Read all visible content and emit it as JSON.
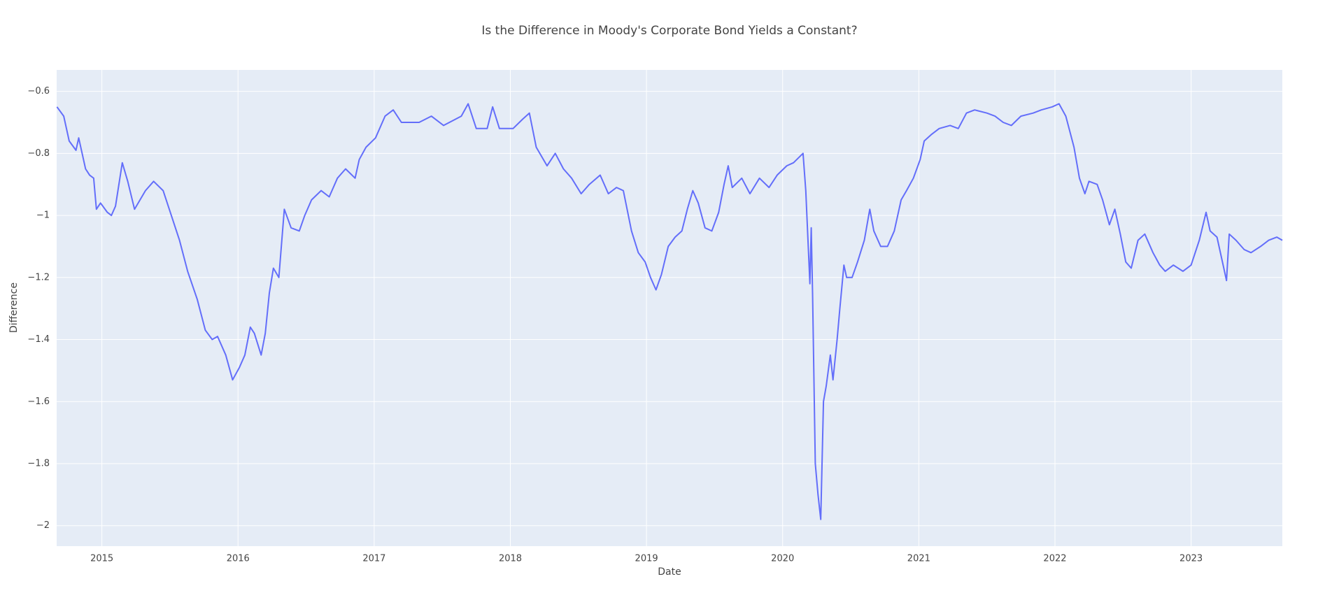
{
  "chart_data": {
    "type": "line",
    "title": "Is the Difference in Moody's Corporate Bond Yields a Constant?",
    "x_label": "Date",
    "y_label": "Difference",
    "color": "#636efa",
    "grid": true,
    "xlim": [
      2014.668,
      2023.67
    ],
    "xticks": [
      2015,
      2016,
      2017,
      2018,
      2019,
      2020,
      2021,
      2022,
      2023
    ],
    "ylim": [
      -2.066,
      -0.531
    ],
    "yticks": [
      {
        "value": -0.6,
        "label": "−0.6"
      },
      {
        "value": -0.8,
        "label": "−0.8"
      },
      {
        "value": -1,
        "label": "−1"
      },
      {
        "value": -1.2,
        "label": "−1.2"
      },
      {
        "value": -1.4,
        "label": "−1.4"
      },
      {
        "value": -1.6,
        "label": "−1.6"
      },
      {
        "value": -1.8,
        "label": "−1.8"
      },
      {
        "value": -2,
        "label": "−2"
      }
    ],
    "x": [
      2014.67,
      2014.72,
      2014.76,
      2014.81,
      2014.83,
      2014.88,
      2014.91,
      2014.94,
      2014.96,
      2014.99,
      2015.04,
      2015.07,
      2015.1,
      2015.15,
      2015.19,
      2015.24,
      2015.32,
      2015.38,
      2015.45,
      2015.51,
      2015.57,
      2015.63,
      2015.7,
      2015.76,
      2015.81,
      2015.85,
      2015.91,
      2015.96,
      2016.01,
      2016.05,
      2016.09,
      2016.12,
      2016.17,
      2016.2,
      2016.23,
      2016.26,
      2016.3,
      2016.34,
      2016.39,
      2016.45,
      2016.49,
      2016.54,
      2016.61,
      2016.67,
      2016.73,
      2016.79,
      2016.86,
      2016.89,
      2016.94,
      2017.01,
      2017.08,
      2017.14,
      2017.2,
      2017.33,
      2017.42,
      2017.51,
      2017.64,
      2017.69,
      2017.75,
      2017.83,
      2017.87,
      2017.92,
      2018.02,
      2018.09,
      2018.14,
      2018.19,
      2018.27,
      2018.33,
      2018.39,
      2018.45,
      2018.52,
      2018.58,
      2018.66,
      2018.72,
      2018.78,
      2018.83,
      2018.89,
      2018.94,
      2018.99,
      2019.03,
      2019.07,
      2019.11,
      2019.16,
      2019.21,
      2019.26,
      2019.3,
      2019.34,
      2019.38,
      2019.43,
      2019.48,
      2019.53,
      2019.57,
      2019.6,
      2019.63,
      2019.7,
      2019.76,
      2019.83,
      2019.9,
      2019.96,
      2020.03,
      2020.08,
      2020.15,
      2020.17,
      2020.2,
      2020.21,
      2020.22,
      2020.24,
      2020.26,
      2020.28,
      2020.3,
      2020.32,
      2020.35,
      2020.37,
      2020.4,
      2020.42,
      2020.45,
      2020.47,
      2020.51,
      2020.55,
      2020.6,
      2020.64,
      2020.67,
      2020.72,
      2020.77,
      2020.82,
      2020.87,
      2020.91,
      2020.96,
      2021.01,
      2021.04,
      2021.09,
      2021.15,
      2021.23,
      2021.29,
      2021.35,
      2021.41,
      2021.5,
      2021.56,
      2021.62,
      2021.68,
      2021.75,
      2021.84,
      2021.9,
      2021.98,
      2022.03,
      2022.08,
      2022.14,
      2022.18,
      2022.22,
      2022.25,
      2022.31,
      2022.35,
      2022.4,
      2022.44,
      2022.48,
      2022.52,
      2022.56,
      2022.61,
      2022.66,
      2022.72,
      2022.77,
      2022.81,
      2022.87,
      2022.94,
      2023.0,
      2023.06,
      2023.11,
      2023.14,
      2023.19,
      2023.23,
      2023.26,
      2023.28,
      2023.33,
      2023.39,
      2023.44,
      2023.51,
      2023.57,
      2023.63,
      2023.67
    ],
    "values": [
      -0.65,
      -0.68,
      -0.76,
      -0.79,
      -0.75,
      -0.85,
      -0.87,
      -0.88,
      -0.98,
      -0.96,
      -0.99,
      -1.0,
      -0.97,
      -0.83,
      -0.89,
      -0.98,
      -0.92,
      -0.89,
      -0.92,
      -1.0,
      -1.08,
      -1.18,
      -1.27,
      -1.37,
      -1.4,
      -1.39,
      -1.45,
      -1.53,
      -1.49,
      -1.45,
      -1.36,
      -1.38,
      -1.45,
      -1.38,
      -1.25,
      -1.17,
      -1.2,
      -0.98,
      -1.04,
      -1.05,
      -1.0,
      -0.95,
      -0.92,
      -0.94,
      -0.88,
      -0.85,
      -0.88,
      -0.82,
      -0.78,
      -0.75,
      -0.68,
      -0.66,
      -0.7,
      -0.7,
      -0.68,
      -0.71,
      -0.68,
      -0.64,
      -0.72,
      -0.72,
      -0.65,
      -0.72,
      -0.72,
      -0.69,
      -0.67,
      -0.78,
      -0.84,
      -0.8,
      -0.85,
      -0.88,
      -0.93,
      -0.9,
      -0.87,
      -0.93,
      -0.91,
      -0.92,
      -1.05,
      -1.12,
      -1.15,
      -1.2,
      -1.24,
      -1.19,
      -1.1,
      -1.07,
      -1.05,
      -0.98,
      -0.92,
      -0.96,
      -1.04,
      -1.05,
      -0.99,
      -0.9,
      -0.84,
      -0.91,
      -0.88,
      -0.93,
      -0.88,
      -0.91,
      -0.87,
      -0.84,
      -0.83,
      -0.8,
      -0.92,
      -1.22,
      -1.04,
      -1.25,
      -1.8,
      -1.9,
      -1.98,
      -1.6,
      -1.55,
      -1.45,
      -1.53,
      -1.4,
      -1.3,
      -1.16,
      -1.2,
      -1.2,
      -1.15,
      -1.08,
      -0.98,
      -1.05,
      -1.1,
      -1.1,
      -1.05,
      -0.95,
      -0.92,
      -0.88,
      -0.82,
      -0.76,
      -0.74,
      -0.72,
      -0.71,
      -0.72,
      -0.67,
      -0.66,
      -0.67,
      -0.68,
      -0.7,
      -0.71,
      -0.68,
      -0.67,
      -0.66,
      -0.65,
      -0.64,
      -0.68,
      -0.78,
      -0.88,
      -0.93,
      -0.89,
      -0.9,
      -0.95,
      -1.03,
      -0.98,
      -1.06,
      -1.15,
      -1.17,
      -1.08,
      -1.06,
      -1.12,
      -1.16,
      -1.18,
      -1.16,
      -1.18,
      -1.16,
      -1.08,
      -0.99,
      -1.05,
      -1.07,
      -1.15,
      -1.21,
      -1.06,
      -1.08,
      -1.11,
      -1.12,
      -1.1,
      -1.08,
      -1.07,
      -1.08
    ]
  }
}
